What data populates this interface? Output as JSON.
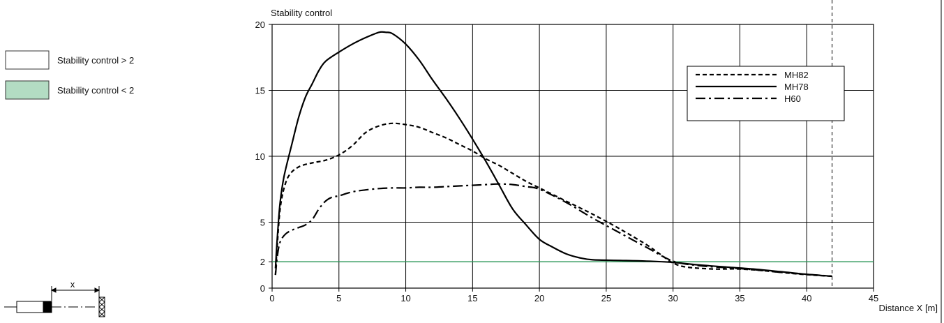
{
  "legend_left": [
    {
      "label": "Stability control > 2",
      "fill": "#ffffff"
    },
    {
      "label": "Stability control < 2",
      "fill": "#b3dcc3"
    }
  ],
  "diagram_label": "x",
  "chart_data": {
    "type": "line",
    "ylabel": "Stability control",
    "xlabel": "Distance X [m]",
    "xlim": [
      0,
      45
    ],
    "ylim": [
      0,
      20
    ],
    "xticks": [
      0,
      5,
      10,
      15,
      20,
      25,
      30,
      35,
      40,
      45
    ],
    "yticks": [
      0,
      2,
      5,
      10,
      15,
      20
    ],
    "grid": true,
    "legend_position": "top-right",
    "threshold": {
      "value": 2,
      "color": "#2e9e5b"
    },
    "vertical_marker": {
      "x": 41.9,
      "style": "dashed"
    },
    "series": [
      {
        "name": "MH82",
        "style": "dashed",
        "x": [
          0.25,
          0.4,
          0.6,
          0.9,
          1.3,
          2,
          3,
          4,
          5,
          6,
          7,
          8,
          9,
          10,
          11,
          12,
          13,
          14,
          15,
          16,
          17,
          18,
          19,
          20,
          22,
          24,
          26,
          28,
          29,
          30,
          31,
          33,
          35,
          37,
          39,
          41,
          41.9
        ],
        "y": [
          1.0,
          3.5,
          6.0,
          7.6,
          8.6,
          9.2,
          9.5,
          9.7,
          10.1,
          10.8,
          11.8,
          12.3,
          12.5,
          12.4,
          12.2,
          11.8,
          11.4,
          10.9,
          10.4,
          9.8,
          9.3,
          8.7,
          8.1,
          7.6,
          6.6,
          5.6,
          4.5,
          3.3,
          2.6,
          1.9,
          1.6,
          1.45,
          1.45,
          1.3,
          1.1,
          0.95,
          0.9
        ]
      },
      {
        "name": "MH78",
        "style": "solid",
        "x": [
          0.25,
          0.4,
          0.6,
          0.9,
          1.5,
          2,
          2.5,
          3,
          3.5,
          4,
          5,
          6,
          7,
          8,
          8.5,
          9,
          10,
          11,
          12,
          13,
          14,
          15,
          16,
          17,
          18,
          19,
          20,
          21,
          22,
          23,
          24,
          26,
          28,
          30,
          32,
          34,
          36,
          38,
          40,
          41.9
        ],
        "y": [
          1.5,
          4.0,
          6.5,
          8.5,
          11.0,
          13.0,
          14.5,
          15.5,
          16.5,
          17.2,
          17.9,
          18.5,
          19.0,
          19.4,
          19.4,
          19.3,
          18.5,
          17.3,
          15.8,
          14.4,
          12.9,
          11.3,
          9.6,
          7.8,
          6.0,
          4.8,
          3.7,
          3.1,
          2.6,
          2.3,
          2.15,
          2.1,
          2.05,
          1.95,
          1.75,
          1.6,
          1.45,
          1.25,
          1.05,
          0.9
        ]
      },
      {
        "name": "H60",
        "style": "dashdot",
        "x": [
          0.25,
          0.4,
          0.6,
          1.0,
          1.5,
          2,
          2.5,
          3,
          3.5,
          4,
          4.5,
          5,
          6,
          7,
          8,
          9,
          10,
          11,
          12,
          13,
          14,
          15,
          16,
          17,
          18,
          19,
          20,
          22,
          24,
          26,
          28,
          30,
          32,
          34,
          36,
          38,
          40,
          41.9
        ],
        "y": [
          1.0,
          2.5,
          3.5,
          4.1,
          4.4,
          4.6,
          4.8,
          5.2,
          6.0,
          6.6,
          6.9,
          7.0,
          7.3,
          7.45,
          7.55,
          7.6,
          7.6,
          7.65,
          7.65,
          7.7,
          7.75,
          7.8,
          7.85,
          7.9,
          7.85,
          7.7,
          7.5,
          6.5,
          5.3,
          4.2,
          3.1,
          2.05,
          1.7,
          1.55,
          1.4,
          1.2,
          1.05,
          0.9
        ]
      }
    ]
  }
}
